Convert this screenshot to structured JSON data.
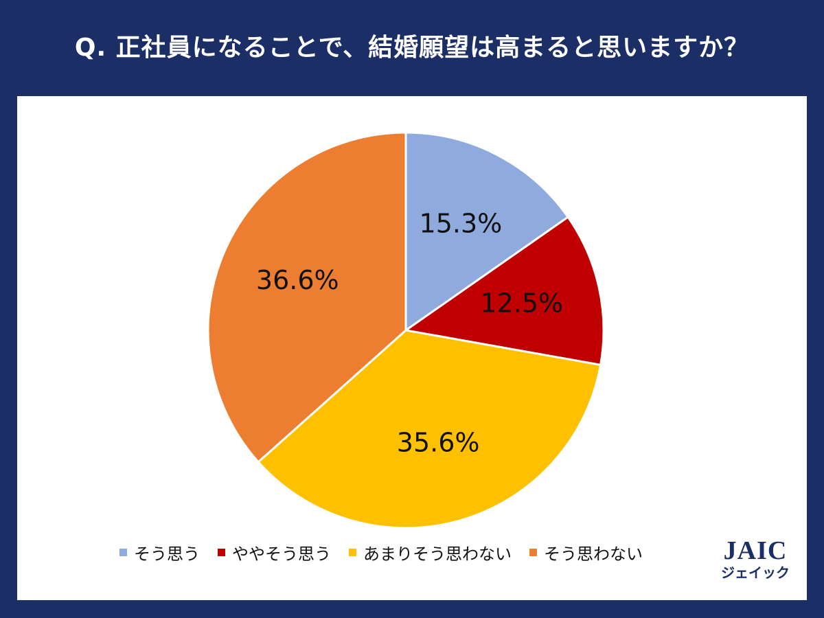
{
  "title": "Q. 正社員になることで、結婚願望は高まると思いますか？",
  "chart_data": {
    "type": "pie",
    "start_angle_deg": 0,
    "direction": "clockwise",
    "slices": [
      {
        "label": "そう思う",
        "value": 15.3,
        "display": "15.3%",
        "color": "#8faadc"
      },
      {
        "label": "ややそう思う",
        "value": 12.5,
        "display": "12.5%",
        "color": "#c00000"
      },
      {
        "label": "あまりそう思わない",
        "value": 35.6,
        "display": "35.6%",
        "color": "#ffc000"
      },
      {
        "label": "そう思わない",
        "value": 36.6,
        "display": "36.6%",
        "color": "#ed7d31"
      }
    ],
    "legend_position": "bottom"
  },
  "logo": {
    "mark": "JAIC",
    "sub": "ジェイック"
  }
}
